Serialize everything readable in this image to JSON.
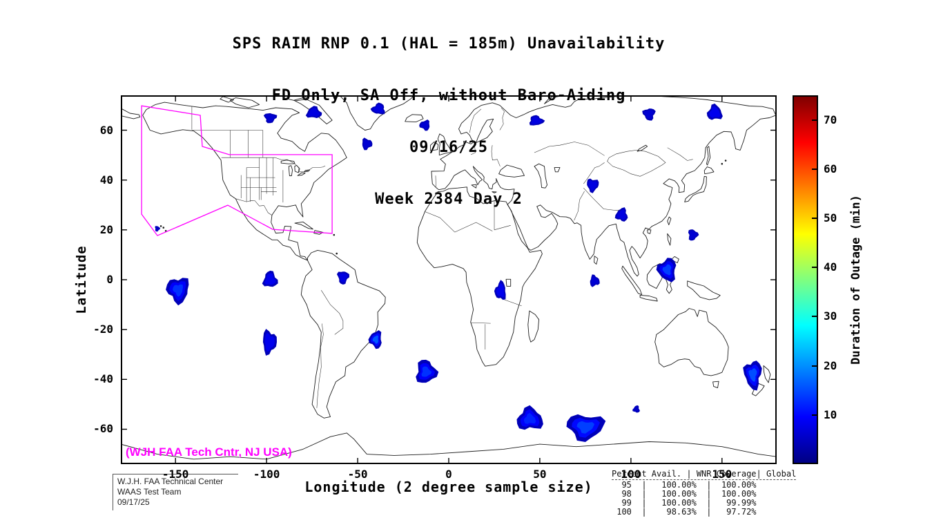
{
  "chart_data": {
    "type": "map-contour",
    "titles": [
      "SPS RAIM RNP 0.1 (HAL = 185m) Unavailability",
      "FD Only, SA Off, without Baro-Aiding",
      "09/16/25",
      "Week 2384 Day 2"
    ],
    "xlabel": "Longitude (2 degree sample size)",
    "ylabel": "Latitude",
    "xlim": [
      -180,
      180
    ],
    "ylim": [
      -74,
      74
    ],
    "xticks": [
      -150,
      -100,
      -50,
      0,
      50,
      100,
      150
    ],
    "yticks": [
      60,
      40,
      20,
      0,
      -20,
      -40,
      -60
    ],
    "colorbar": {
      "label": "Duration of Outage (min)",
      "min": 0,
      "max": 75,
      "ticks": [
        10,
        20,
        30,
        40,
        50,
        60,
        70
      ],
      "colormap": "jet"
    },
    "annotation": {
      "text": "(WJH FAA Tech Cntr, NJ USA)",
      "color": "#ff00ff"
    },
    "waas_boundary_color": "#ff00ff",
    "waas_boundary_lonlat": [
      [
        -168.6,
        69.8
      ],
      [
        -136.4,
        66.0
      ],
      [
        -135.3,
        53.5
      ],
      [
        -120.5,
        50.2
      ],
      [
        -64.0,
        50.2
      ],
      [
        -64.0,
        18.6
      ],
      [
        -96.6,
        20.2
      ],
      [
        -121.3,
        29.9
      ],
      [
        -159.9,
        17.7
      ],
      [
        -168.6,
        26.3
      ]
    ],
    "outage_regions": [
      {
        "lon": -74,
        "lat": 67,
        "rx": 4,
        "ry": 2.3,
        "duration_min": 7
      },
      {
        "lon": -98,
        "lat": 65,
        "rx": 3.2,
        "ry": 2,
        "duration_min": 6
      },
      {
        "lon": -38.5,
        "lat": 68.5,
        "rx": 3.6,
        "ry": 2.2,
        "duration_min": 7
      },
      {
        "lon": -45,
        "lat": 54.5,
        "rx": 2.8,
        "ry": 2.2,
        "duration_min": 6
      },
      {
        "lon": -13,
        "lat": 62,
        "rx": 2.8,
        "ry": 2,
        "duration_min": 6
      },
      {
        "lon": 48,
        "lat": 63.8,
        "rx": 3.8,
        "ry": 2,
        "duration_min": 7
      },
      {
        "lon": 110,
        "lat": 66.5,
        "rx": 3.2,
        "ry": 2.4,
        "duration_min": 6
      },
      {
        "lon": 146,
        "lat": 67,
        "rx": 4,
        "ry": 3,
        "duration_min": 8
      },
      {
        "lon": 79,
        "lat": 38,
        "rx": 3.2,
        "ry": 2.6,
        "duration_min": 7
      },
      {
        "lon": 95,
        "lat": 26,
        "rx": 3.2,
        "ry": 2.6,
        "duration_min": 7
      },
      {
        "lon": 134,
        "lat": 18,
        "rx": 2.6,
        "ry": 2.2,
        "duration_min": 6
      },
      {
        "lon": 120,
        "lat": 4,
        "rx": 5,
        "ry": 4.5,
        "duration_min": 9,
        "peak_min": 14
      },
      {
        "lon": 80,
        "lat": -0.5,
        "rx": 2.6,
        "ry": 2.2,
        "duration_min": 6
      },
      {
        "lon": -148.5,
        "lat": -4,
        "rx": 6,
        "ry": 5,
        "duration_min": 9,
        "peak_min": 13
      },
      {
        "lon": -98,
        "lat": 0,
        "rx": 3.8,
        "ry": 3.2,
        "duration_min": 8
      },
      {
        "lon": -58,
        "lat": 1,
        "rx": 3,
        "ry": 2.6,
        "duration_min": 7
      },
      {
        "lon": 28.5,
        "lat": -4.5,
        "rx": 3,
        "ry": 3.6,
        "duration_min": 8
      },
      {
        "lon": -98.5,
        "lat": -25,
        "rx": 3.8,
        "ry": 4.6,
        "duration_min": 8
      },
      {
        "lon": -40,
        "lat": -24,
        "rx": 3.4,
        "ry": 3.4,
        "duration_min": 10,
        "peak_min": 16
      },
      {
        "lon": -12.5,
        "lat": -37,
        "rx": 5.5,
        "ry": 4.6,
        "duration_min": 9,
        "peak_min": 13
      },
      {
        "lon": 167,
        "lat": -38,
        "rx": 4.6,
        "ry": 5.6,
        "duration_min": 10,
        "peak_min": 15
      },
      {
        "lon": 44.5,
        "lat": -56,
        "rx": 7,
        "ry": 4.4,
        "duration_min": 9,
        "peak_min": 12
      },
      {
        "lon": 75,
        "lat": -59,
        "rx": 10,
        "ry": 5,
        "duration_min": 10,
        "peak_min": 14
      },
      {
        "lon": 103,
        "lat": -52,
        "rx": 1.8,
        "ry": 1.4,
        "duration_min": 5
      },
      {
        "lon": -160,
        "lat": 20.5,
        "rx": 1.3,
        "ry": 1.1,
        "duration_min": 5
      }
    ]
  },
  "footer": {
    "credits": [
      "W.J.H. FAA Technical Center",
      "WAAS Test Team",
      "09/17/25"
    ],
    "stats": {
      "header": [
        "Percent Avail.",
        "WNR Coverage",
        "Global"
      ],
      "rows": [
        [
          "95",
          "100.00%",
          "100.00%"
        ],
        [
          "98",
          "100.00%",
          "100.00%"
        ],
        [
          "99",
          "100.00%",
          "99.99%"
        ],
        [
          "100",
          "98.63%",
          "97.72%"
        ]
      ]
    }
  }
}
